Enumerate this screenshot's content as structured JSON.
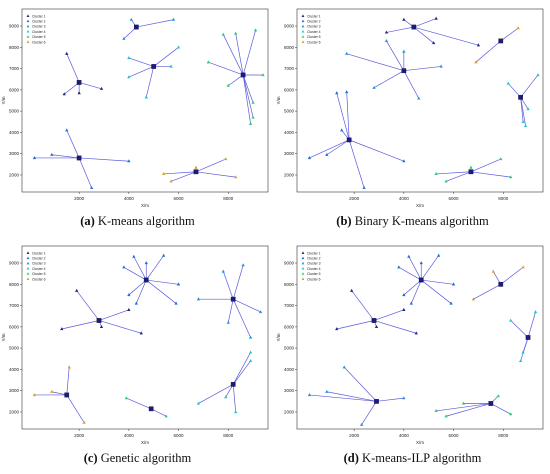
{
  "legend_labels": [
    "Cluster 1",
    "Cluster 2",
    "Cluster 3",
    "Cluster 4",
    "Cluster 5",
    "Cluster 6"
  ],
  "cluster_colors": [
    "#1f2a7a",
    "#1f6fd6",
    "#1f9ad6",
    "#22c4c4",
    "#2ecc71",
    "#e0a020"
  ],
  "edge_color": "#5b5bdc",
  "panels": [
    {
      "letter": "(a)",
      "name": "K-means algorithm"
    },
    {
      "letter": "(b)",
      "name": "Binary K-means algorithm"
    },
    {
      "letter": "(c)",
      "name": "Genetic algorithm"
    },
    {
      "letter": "(d)",
      "name": "K-means-ILP algorithm"
    }
  ],
  "chart_data": [
    {
      "type": "scatter",
      "title": "",
      "xlabel": "X/m",
      "ylabel": "Y/m",
      "xlim": [
        -300,
        9600
      ],
      "ylim": [
        1200,
        9800
      ],
      "xticks": [
        2000,
        4000,
        6000,
        8000
      ],
      "yticks": [
        2000,
        3000,
        4000,
        5000,
        6000,
        7000,
        8000,
        9000
      ],
      "legend_position": "top-left",
      "series": [
        {
          "name": "Cluster 1",
          "center": [
            2000,
            6350
          ],
          "points": [
            [
              1500,
              7700
            ],
            [
              1400,
              5800
            ],
            [
              2000,
              5850
            ],
            [
              2900,
              6050
            ]
          ]
        },
        {
          "name": "Cluster 2",
          "center": [
            2000,
            2800
          ],
          "points": [
            [
              1500,
              4100
            ],
            [
              200,
              2800
            ],
            [
              900,
              2950
            ],
            [
              2500,
              1400
            ],
            [
              4000,
              2650
            ]
          ]
        },
        {
          "name": "Cluster 3",
          "center": [
            4300,
            8950
          ],
          "points": [
            [
              4100,
              9300
            ],
            [
              3800,
              8400
            ],
            [
              5800,
              9300
            ]
          ]
        },
        {
          "name": "Cluster 4",
          "center": [
            5000,
            7100
          ],
          "points": [
            [
              4000,
              7500
            ],
            [
              4000,
              6600
            ],
            [
              6000,
              8000
            ],
            [
              4700,
              5650
            ],
            [
              5700,
              7100
            ]
          ]
        },
        {
          "name": "Cluster 5",
          "center": [
            8600,
            6700
          ],
          "points": [
            [
              7200,
              7300
            ],
            [
              7800,
              8600
            ],
            [
              8300,
              8650
            ],
            [
              9100,
              8800
            ],
            [
              9400,
              6700
            ],
            [
              8000,
              6200
            ],
            [
              9000,
              5400
            ],
            [
              9000,
              4700
            ],
            [
              8900,
              4400
            ]
          ]
        },
        {
          "name": "Cluster 6",
          "center": [
            6700,
            2150
          ],
          "points": [
            [
              5400,
              2050
            ],
            [
              5700,
              1700
            ],
            [
              6700,
              2350
            ],
            [
              7900,
              2750
            ],
            [
              8300,
              1900
            ]
          ]
        }
      ]
    },
    {
      "type": "scatter",
      "title": "",
      "xlabel": "X/m",
      "ylabel": "Y/m",
      "xlim": [
        -300,
        9600
      ],
      "ylim": [
        1200,
        9800
      ],
      "xticks": [
        2000,
        4000,
        6000,
        8000
      ],
      "yticks": [
        2000,
        3000,
        4000,
        5000,
        6000,
        7000,
        8000,
        9000
      ],
      "legend_position": "top-left",
      "series": [
        {
          "name": "Cluster 1",
          "center": [
            4400,
            8950
          ],
          "points": [
            [
              4000,
              9300
            ],
            [
              3300,
              8700
            ],
            [
              5300,
              9350
            ],
            [
              5200,
              8200
            ],
            [
              7000,
              8100
            ]
          ]
        },
        {
          "name": "Cluster 2",
          "center": [
            1800,
            3650
          ],
          "points": [
            [
              1300,
              5850
            ],
            [
              1700,
              5900
            ],
            [
              1500,
              4100
            ],
            [
              200,
              2800
            ],
            [
              900,
              2950
            ],
            [
              2400,
              1400
            ],
            [
              4000,
              2650
            ]
          ]
        },
        {
          "name": "Cluster 3",
          "center": [
            4000,
            6900
          ],
          "points": [
            [
              1700,
              7700
            ],
            [
              2800,
              6100
            ],
            [
              3300,
              8300
            ],
            [
              4000,
              7800
            ],
            [
              5500,
              7100
            ],
            [
              4600,
              5600
            ]
          ]
        },
        {
          "name": "Cluster 4",
          "center": [
            8700,
            5650
          ],
          "points": [
            [
              8200,
              6300
            ],
            [
              9400,
              6700
            ],
            [
              9000,
              5100
            ],
            [
              8800,
              4500
            ],
            [
              8900,
              4300
            ]
          ]
        },
        {
          "name": "Cluster 5",
          "center": [
            6700,
            2150
          ],
          "points": [
            [
              5300,
              2050
            ],
            [
              5700,
              1700
            ],
            [
              6700,
              2350
            ],
            [
              7900,
              2750
            ],
            [
              8300,
              1900
            ]
          ]
        },
        {
          "name": "Cluster 6",
          "center": [
            7900,
            8300
          ],
          "points": [
            [
              6900,
              7300
            ],
            [
              8600,
              8900
            ]
          ]
        }
      ]
    },
    {
      "type": "scatter",
      "title": "",
      "xlabel": "X/m",
      "ylabel": "Y/m",
      "xlim": [
        -300,
        9600
      ],
      "ylim": [
        1200,
        9800
      ],
      "xticks": [
        2000,
        4000,
        6000,
        8000
      ],
      "yticks": [
        2000,
        3000,
        4000,
        5000,
        6000,
        7000,
        8000,
        9000
      ],
      "legend_position": "top-left",
      "series": [
        {
          "name": "Cluster 1",
          "center": [
            2800,
            6300
          ],
          "points": [
            [
              1900,
              7700
            ],
            [
              1300,
              5900
            ],
            [
              2900,
              6000
            ],
            [
              4000,
              6800
            ],
            [
              4500,
              5700
            ]
          ]
        },
        {
          "name": "Cluster 2",
          "center": [
            4700,
            8200
          ],
          "points": [
            [
              4200,
              9300
            ],
            [
              3800,
              8800
            ],
            [
              5400,
              9350
            ],
            [
              4700,
              9000
            ],
            [
              6000,
              8000
            ],
            [
              5900,
              7100
            ],
            [
              4300,
              7100
            ],
            [
              4000,
              7500
            ]
          ]
        },
        {
          "name": "Cluster 3",
          "center": [
            8200,
            7300
          ],
          "points": [
            [
              6800,
              7300
            ],
            [
              7800,
              8600
            ],
            [
              8600,
              8900
            ],
            [
              9300,
              6700
            ],
            [
              8900,
              5500
            ],
            [
              8000,
              6200
            ]
          ]
        },
        {
          "name": "Cluster 4",
          "center": [
            8200,
            3300
          ],
          "points": [
            [
              6800,
              2400
            ],
            [
              7900,
              2700
            ],
            [
              8300,
              2000
            ],
            [
              8900,
              4400
            ],
            [
              8900,
              4800
            ]
          ]
        },
        {
          "name": "Cluster 5",
          "center": [
            4900,
            2150
          ],
          "points": [
            [
              3900,
              2650
            ],
            [
              5500,
              1800
            ]
          ]
        },
        {
          "name": "Cluster 6",
          "center": [
            1500,
            2800
          ],
          "points": [
            [
              1600,
              4100
            ],
            [
              200,
              2800
            ],
            [
              900,
              2950
            ],
            [
              2200,
              1500
            ]
          ]
        }
      ]
    },
    {
      "type": "scatter",
      "title": "",
      "xlabel": "X/m",
      "ylabel": "Y/m",
      "xlim": [
        -300,
        9600
      ],
      "ylim": [
        1200,
        9800
      ],
      "xticks": [
        2000,
        4000,
        6000,
        8000
      ],
      "yticks": [
        2000,
        3000,
        4000,
        5000,
        6000,
        7000,
        8000,
        9000
      ],
      "legend_position": "top-left",
      "series": [
        {
          "name": "Cluster 1",
          "center": [
            2800,
            6300
          ],
          "points": [
            [
              1900,
              7700
            ],
            [
              1300,
              5900
            ],
            [
              2900,
              6000
            ],
            [
              4000,
              6800
            ],
            [
              4500,
              5700
            ]
          ]
        },
        {
          "name": "Cluster 2",
          "center": [
            4700,
            8200
          ],
          "points": [
            [
              4200,
              9300
            ],
            [
              3800,
              8800
            ],
            [
              5400,
              9350
            ],
            [
              4700,
              9000
            ],
            [
              6000,
              8000
            ],
            [
              5900,
              7100
            ],
            [
              4300,
              7100
            ],
            [
              4000,
              7500
            ]
          ]
        },
        {
          "name": "Cluster 3",
          "center": [
            2900,
            2500
          ],
          "points": [
            [
              1600,
              4100
            ],
            [
              200,
              2800
            ],
            [
              900,
              2950
            ],
            [
              2300,
              1400
            ],
            [
              4000,
              2650
            ]
          ]
        },
        {
          "name": "Cluster 4",
          "center": [
            9000,
            5500
          ],
          "points": [
            [
              8300,
              6300
            ],
            [
              9300,
              6700
            ],
            [
              8800,
              4800
            ],
            [
              8700,
              4400
            ]
          ]
        },
        {
          "name": "Cluster 5",
          "center": [
            7500,
            2400
          ],
          "points": [
            [
              5300,
              2050
            ],
            [
              5700,
              1800
            ],
            [
              6400,
              2400
            ],
            [
              7800,
              2750
            ],
            [
              8300,
              1900
            ]
          ]
        },
        {
          "name": "Cluster 6",
          "center": [
            7900,
            8000
          ],
          "points": [
            [
              6800,
              7300
            ],
            [
              8800,
              8800
            ],
            [
              7600,
              8600
            ]
          ]
        }
      ]
    }
  ]
}
